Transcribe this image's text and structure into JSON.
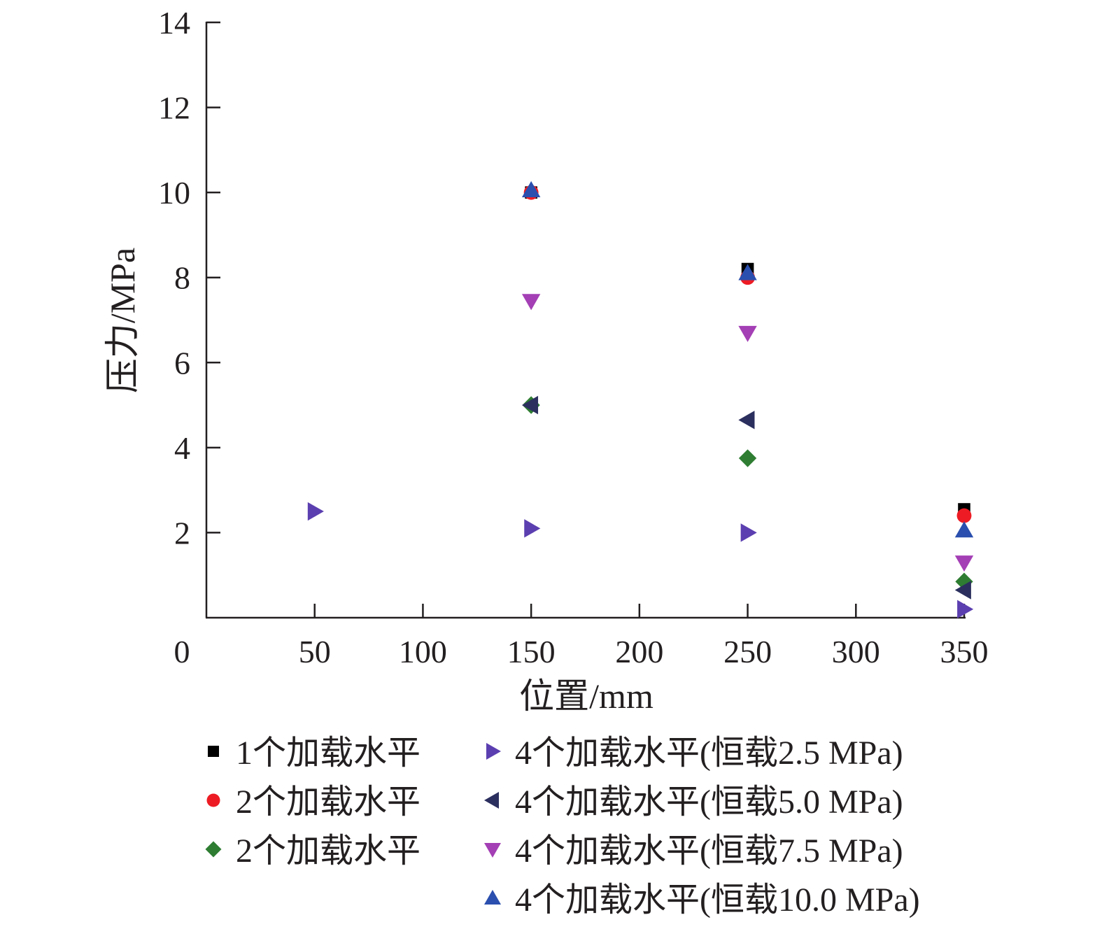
{
  "chart_data": {
    "type": "scatter",
    "xlabel": "位置/mm",
    "ylabel": "压力/MPa",
    "xlim": [
      0,
      350
    ],
    "ylim": [
      0,
      14
    ],
    "x_ticks": [
      0,
      50,
      100,
      150,
      200,
      250,
      300,
      350
    ],
    "y_ticks": [
      2,
      4,
      6,
      8,
      10,
      12,
      14
    ],
    "grid": false,
    "legend_position": "bottom",
    "series": [
      {
        "name": "1个加载水平",
        "marker": "square",
        "color": "#000000",
        "x": [
          150,
          250,
          350
        ],
        "y": [
          10.0,
          8.2,
          2.55
        ]
      },
      {
        "name": "2个加载水平",
        "marker": "circle",
        "color": "#ed1c24",
        "x": [
          150,
          250,
          350
        ],
        "y": [
          10.0,
          8.0,
          2.4
        ]
      },
      {
        "name": "2个加载水平",
        "marker": "diamond",
        "color": "#2e7d32",
        "x": [
          150,
          250,
          350
        ],
        "y": [
          5.0,
          3.75,
          0.85
        ]
      },
      {
        "name": "4个加载水平(恒载2.5 MPa)",
        "marker": "triangle-right",
        "color": "#5b3fb0",
        "x": [
          50,
          150,
          250,
          350
        ],
        "y": [
          2.5,
          2.1,
          2.0,
          0.2
        ]
      },
      {
        "name": "4个加载水平(恒载5.0 MPa)",
        "marker": "triangle-left",
        "color": "#2b2f5e",
        "x": [
          150,
          250,
          350
        ],
        "y": [
          5.0,
          4.65,
          0.65
        ]
      },
      {
        "name": "4个加载水平(恒载7.5 MPa)",
        "marker": "triangle-down",
        "color": "#a43fb5",
        "x": [
          150,
          250,
          350
        ],
        "y": [
          7.45,
          6.7,
          1.3
        ]
      },
      {
        "name": "4个加载水平(恒载10.0 MPa)",
        "marker": "triangle-up",
        "color": "#2a4fae",
        "x": [
          150,
          250,
          350
        ],
        "y": [
          10.05,
          8.1,
          2.05
        ]
      }
    ]
  }
}
